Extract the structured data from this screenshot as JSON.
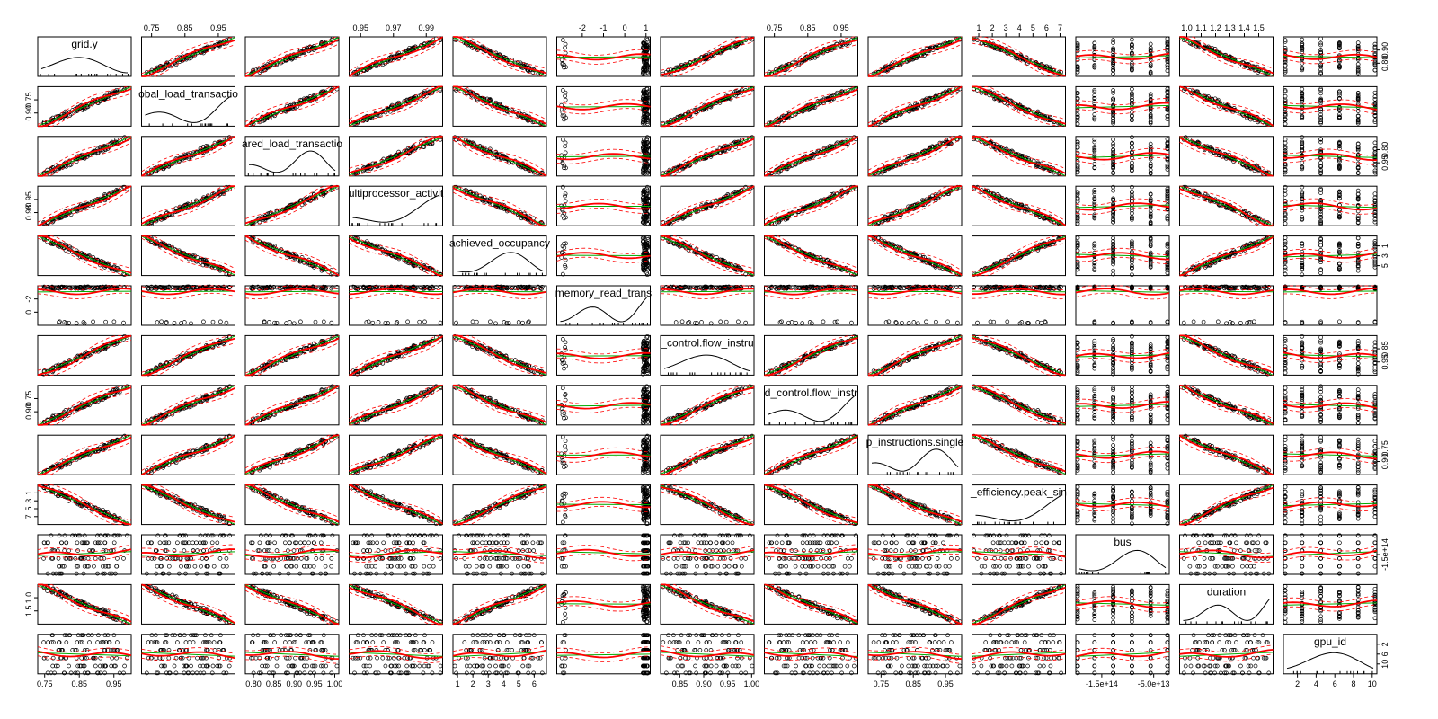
{
  "chart_data": {
    "type": "scatter",
    "matrix": true,
    "variables": [
      {
        "name": "grid.y",
        "label": "grid.y",
        "ticks": [
          "0.75",
          "0.85",
          "0.95"
        ],
        "tick_values": [
          0.75,
          0.85,
          0.95
        ],
        "range": [
          0.73,
          1.0
        ]
      },
      {
        "name": "global_load_transactions",
        "label": "obal_load_transactio",
        "ticks": [
          "0.75",
          "0.85",
          "0.95"
        ],
        "tick_values": [
          0.75,
          0.85,
          0.95
        ],
        "range": [
          0.72,
          1.0
        ]
      },
      {
        "name": "shared_load_transactions",
        "label": "ared_load_transactio",
        "ticks": [
          "0.80",
          "0.85",
          "0.90",
          "0.95",
          "1.00"
        ],
        "tick_values": [
          0.8,
          0.85,
          0.9,
          0.95,
          1.0
        ],
        "range": [
          0.78,
          1.01
        ]
      },
      {
        "name": "multiprocessor_activity",
        "label": "ultiprocessor_activit",
        "ticks": [
          "0.95",
          "0.97",
          "0.99"
        ],
        "tick_values": [
          0.95,
          0.97,
          0.99
        ],
        "range": [
          0.943,
          1.0
        ]
      },
      {
        "name": "achieved_occupancy",
        "label": "achieved_occupancy",
        "ticks": [
          "1",
          "2",
          "3",
          "4",
          "5",
          "6"
        ],
        "tick_values": [
          1,
          2,
          3,
          4,
          5,
          6
        ],
        "range": [
          0.7,
          6.8
        ]
      },
      {
        "name": "memory_read_transactions",
        "label": "memory_read_trans",
        "ticks": [
          "-2",
          "-1",
          "0",
          "1"
        ],
        "tick_values": [
          -2,
          -1,
          0,
          1
        ],
        "range": [
          -3.2,
          1.2
        ]
      },
      {
        "name": "executed_control.flow_instructions",
        "label": "_control.flow_instru",
        "ticks": [
          "0.85",
          "0.90",
          "0.95",
          "1.00"
        ],
        "tick_values": [
          0.85,
          0.9,
          0.95,
          1.0
        ],
        "range": [
          0.81,
          1.005
        ]
      },
      {
        "name": "issued_control.flow_instructions",
        "label": "d_control.flow_instr",
        "ticks": [
          "0.75",
          "0.85",
          "0.95"
        ],
        "tick_values": [
          0.75,
          0.85,
          0.95
        ],
        "range": [
          0.72,
          1.0
        ]
      },
      {
        "name": "flop_instructions.single",
        "label": "p_instructions.single",
        "ticks": [
          "0.75",
          "0.85",
          "0.95"
        ],
        "tick_values": [
          0.75,
          0.85,
          0.95
        ],
        "range": [
          0.71,
          1.0
        ]
      },
      {
        "name": "flop_efficiency.peak_single",
        "label": "_efficiency.peak_sin",
        "ticks": [
          "1",
          "2",
          "3",
          "4",
          "5",
          "6",
          "7"
        ],
        "tick_values": [
          1,
          2,
          3,
          4,
          5,
          6,
          7
        ],
        "range": [
          0.5,
          7.4
        ]
      },
      {
        "name": "bus",
        "label": "bus",
        "ticks": [
          "-1.5e+14",
          "-5.0e+13"
        ],
        "tick_values": [
          -150000000000000,
          -50000000000000
        ],
        "range": [
          -200000000000000,
          -20000000000000
        ]
      },
      {
        "name": "duration",
        "label": "duration",
        "ticks": [
          "1.0",
          "1.1",
          "1.2",
          "1.3",
          "1.4",
          "1.5"
        ],
        "tick_values": [
          1.0,
          1.1,
          1.2,
          1.3,
          1.4,
          1.5
        ],
        "range": [
          0.95,
          1.6
        ]
      },
      {
        "name": "gpu_id",
        "label": "gpu_id",
        "ticks": [
          "2",
          "4",
          "6",
          "8",
          "10"
        ],
        "tick_values": [
          2,
          4,
          6,
          8,
          10
        ],
        "range": [
          0.5,
          10.5
        ]
      }
    ],
    "top_axis_columns": [
      1,
      3,
      5,
      7,
      9,
      11
    ],
    "bottom_axis_columns": [
      0,
      2,
      4,
      6,
      8,
      10,
      12
    ],
    "left_axis_rows": [
      1,
      3,
      5,
      7,
      9,
      11
    ],
    "right_axis_rows": [
      0,
      2,
      4,
      6,
      8,
      10,
      12
    ],
    "row_axis_ticks": {
      "0": [
        "0.90",
        "0.80"
      ],
      "1": [
        "0.75",
        "0.90"
      ],
      "2": [
        "0.80",
        "0.95"
      ],
      "3": [
        "0.95",
        "0.98"
      ],
      "4": [
        "1",
        "3",
        "5"
      ],
      "5": [
        "-2",
        "0"
      ],
      "6": [
        "0.85",
        "0.95"
      ],
      "7": [
        "0.75",
        "0.90"
      ],
      "8": [
        "0.75",
        "0.90"
      ],
      "9": [
        "1",
        "3",
        "5",
        "7"
      ],
      "10": [
        "-1.5e+14"
      ],
      "11": [
        "1.0",
        "1.5"
      ],
      "12": [
        "2",
        "6",
        "10"
      ]
    },
    "point_symbol": "open circle",
    "fitted_lines": [
      "linear fit (green)",
      "smoothed fit (solid red)",
      "spread band (dashed red)"
    ],
    "diagonal": "kernel density with rug",
    "colors": {
      "points": "#000000",
      "linear": "#00aa00",
      "smooth": "#ff0000",
      "frame": "#000000",
      "background": "#ffffff"
    },
    "grid": false,
    "legend": "none",
    "title": ""
  }
}
